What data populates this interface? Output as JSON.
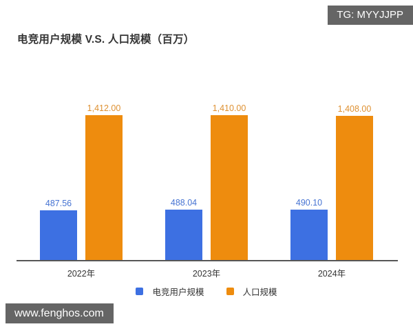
{
  "badges": {
    "tg": "TG: MYYJJPP",
    "watermark": "www.fenghos.com",
    "background_color": "#656565",
    "text_color": "#ffffff"
  },
  "chart_data": {
    "type": "bar",
    "title": "电竞用户规模 V.S. 人口规模（百万）",
    "categories": [
      "2022年",
      "2023年",
      "2024年"
    ],
    "series": [
      {
        "name": "电竞用户规模",
        "color": "#3d70e2",
        "label_color": "#4673d2",
        "values": [
          487.56,
          488.04,
          490.1
        ],
        "labels": [
          "487.56",
          "488.04",
          "490.10"
        ]
      },
      {
        "name": "人口规模",
        "color": "#ee8c0e",
        "label_color": "#de9030",
        "values": [
          1412.0,
          1410.0,
          1408.0
        ],
        "labels": [
          "1,412.00",
          "1,410.00",
          "1,408.00"
        ]
      }
    ],
    "xlabel": "",
    "ylabel": "",
    "ylim": [
      0,
      1412
    ],
    "grid": false,
    "y_axis_visible": false,
    "legend_position": "bottom"
  }
}
